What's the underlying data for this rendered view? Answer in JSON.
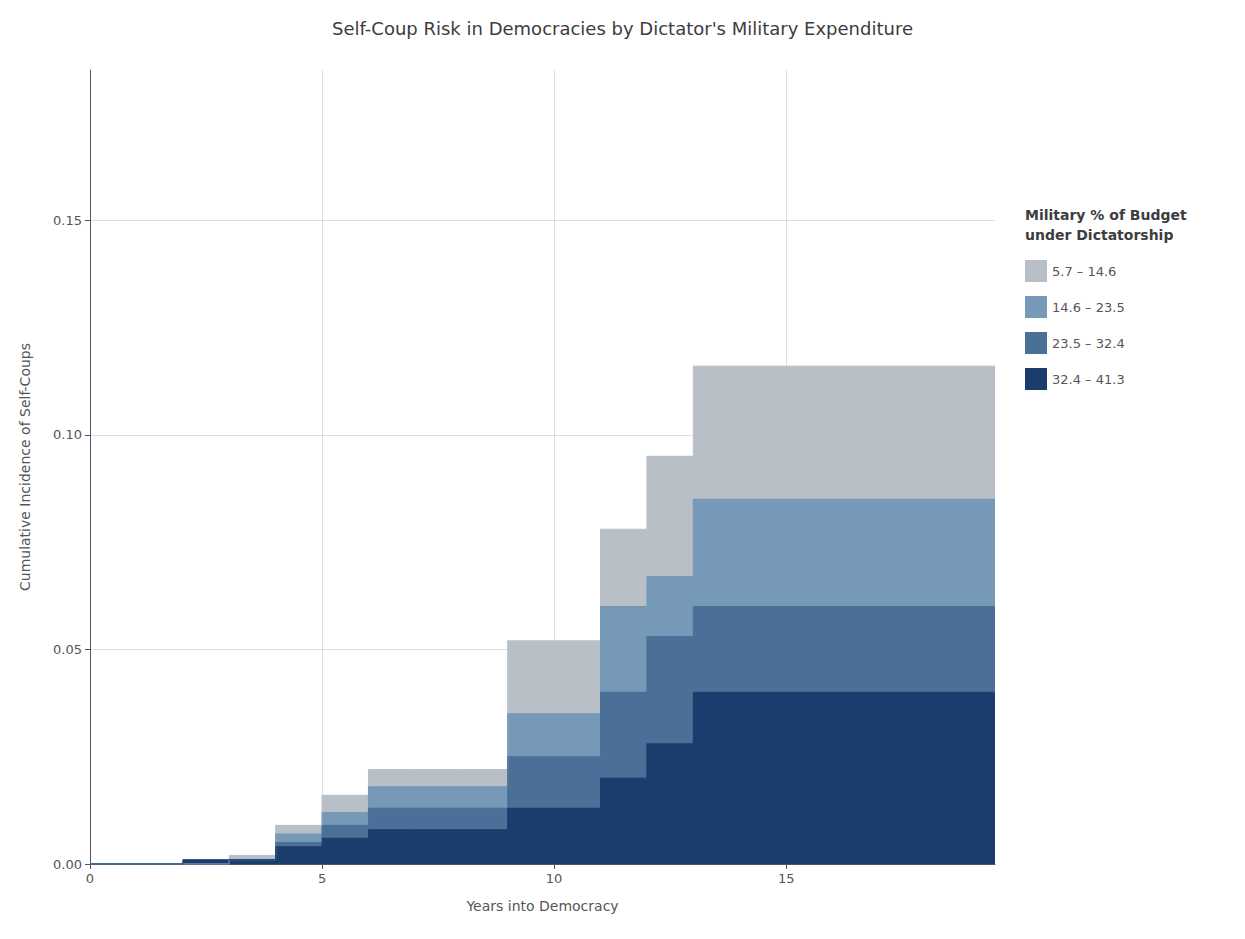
{
  "chart_data": {
    "type": "area",
    "title": "Self-Coup Risk in Democracies by Dictator's Military Expenditure",
    "xlabel": "Years into Democracy",
    "ylabel": "Cumulative Incidence of Self-Coups",
    "xlim": [
      0,
      19.5
    ],
    "ylim": [
      0,
      0.185
    ],
    "xticks": [
      0,
      5,
      10,
      15
    ],
    "yticks": [
      {
        "value": 0.0,
        "label": "0.00"
      },
      {
        "value": 0.05,
        "label": "0.05"
      },
      {
        "value": 0.1,
        "label": "0.10"
      },
      {
        "value": 0.15,
        "label": "0.15"
      }
    ],
    "grid": true,
    "legend": "right",
    "legend_title": "Military % of Budget\nunder Dictatorship",
    "series": [
      {
        "name": "5.7 – 14.6",
        "color": "#b8bfc6",
        "x": [
          0,
          3,
          3,
          4,
          4,
          5,
          5,
          6,
          6,
          7,
          7,
          8,
          8,
          9,
          9,
          10,
          10,
          11,
          11,
          12,
          12,
          13,
          13,
          14,
          14,
          19.5
        ],
        "values": [
          0.0,
          0.0,
          0.002,
          0.002,
          0.009,
          0.009,
          0.016,
          0.016,
          0.022,
          0.022,
          0.022,
          0.022,
          0.022,
          0.022,
          0.052,
          0.052,
          0.052,
          0.052,
          0.078,
          0.078,
          0.095,
          0.095,
          0.116,
          0.116,
          0.116,
          0.116
        ]
      },
      {
        "name": "14.6 – 23.5",
        "color": "#7599b6",
        "x": [
          0,
          3,
          3,
          4,
          4,
          5,
          5,
          6,
          6,
          7,
          7,
          9,
          9,
          10,
          10,
          11,
          11,
          12,
          12,
          13,
          13,
          14,
          14,
          19.5
        ],
        "values": [
          0.0,
          0.0,
          0.001,
          0.001,
          0.007,
          0.007,
          0.012,
          0.012,
          0.018,
          0.018,
          0.018,
          0.018,
          0.035,
          0.035,
          0.035,
          0.035,
          0.06,
          0.06,
          0.067,
          0.067,
          0.085,
          0.085,
          0.085,
          0.085
        ]
      },
      {
        "name": "23.5 – 32.4",
        "color": "#4a7098",
        "x": [
          0,
          3,
          3,
          4,
          4,
          5,
          5,
          6,
          6,
          7,
          9,
          9,
          10,
          11,
          11,
          12,
          12,
          13,
          13,
          14,
          19.5
        ],
        "values": [
          0.0,
          0.0,
          0.001,
          0.001,
          0.005,
          0.005,
          0.009,
          0.009,
          0.013,
          0.013,
          0.013,
          0.025,
          0.025,
          0.025,
          0.04,
          0.04,
          0.053,
          0.053,
          0.06,
          0.06,
          0.06
        ]
      },
      {
        "name": "32.4 – 41.3",
        "color": "#1b3d6e",
        "x": [
          0,
          2,
          2,
          3,
          3,
          4,
          4,
          5,
          5,
          6,
          6,
          7,
          9,
          9,
          10,
          11,
          11,
          12,
          12,
          13,
          13,
          14,
          19.5
        ],
        "values": [
          0.0,
          0.0,
          0.001,
          0.001,
          0.001,
          0.001,
          0.004,
          0.004,
          0.006,
          0.006,
          0.008,
          0.008,
          0.008,
          0.013,
          0.013,
          0.013,
          0.02,
          0.02,
          0.028,
          0.028,
          0.04,
          0.04,
          0.04
        ]
      }
    ]
  }
}
